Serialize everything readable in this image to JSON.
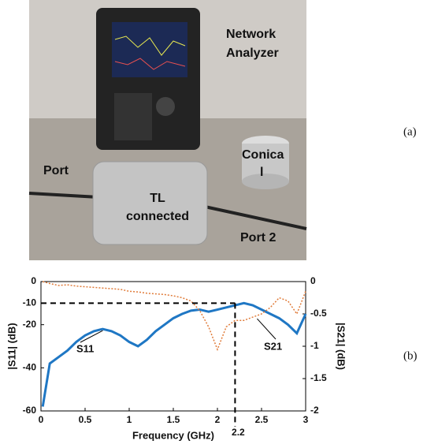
{
  "photo": {
    "labels": {
      "analyzer": [
        "Network",
        "Analyzer"
      ],
      "conical": [
        "Conica",
        "l"
      ],
      "port1": "Port",
      "tl": [
        "TL",
        "connected"
      ],
      "port2": "Port 2"
    },
    "panel_label": "(a)"
  },
  "chart_data": {
    "type": "line",
    "panel_label": "(b)",
    "x_label": "Frequency (GHz)",
    "y_label": "|S11| (dB)",
    "y2_label": "|S21| (dB)",
    "x": [
      0.02,
      0.1,
      0.2,
      0.3,
      0.4,
      0.5,
      0.6,
      0.7,
      0.8,
      0.9,
      1.0,
      1.1,
      1.2,
      1.3,
      1.4,
      1.5,
      1.6,
      1.7,
      1.8,
      1.9,
      2.0,
      2.1,
      2.2,
      2.3,
      2.4,
      2.5,
      2.6,
      2.7,
      2.8,
      2.9,
      3.0
    ],
    "series": [
      {
        "name": "S11",
        "color": "#1f77c4",
        "values": [
          -58,
          -38,
          -35,
          -32,
          -28,
          -25,
          -23,
          -22,
          -23,
          -25,
          -28,
          -30,
          -27,
          -23,
          -20,
          -17,
          -15,
          -13.5,
          -13,
          -14,
          -13,
          -12,
          -11,
          -10,
          -11,
          -13,
          -15,
          -17,
          -20,
          -24,
          -15
        ]
      },
      {
        "name": "S21",
        "color": "#e07b39",
        "axis": "y2",
        "values": [
          0,
          -0.03,
          -0.06,
          -0.05,
          -0.07,
          -0.08,
          -0.09,
          -0.1,
          -0.11,
          -0.12,
          -0.15,
          -0.16,
          -0.18,
          -0.19,
          -0.2,
          -0.22,
          -0.25,
          -0.3,
          -0.45,
          -0.7,
          -1.05,
          -0.7,
          -0.6,
          -0.6,
          -0.55,
          -0.5,
          -0.4,
          -0.25,
          -0.3,
          -0.5,
          -0.15
        ]
      }
    ],
    "xlim": [
      0,
      3
    ],
    "xticks": [
      0,
      0.5,
      1,
      1.5,
      2,
      2.5,
      3
    ],
    "ylim": [
      -60,
      0
    ],
    "yticks": [
      -60,
      -40,
      -20,
      -10,
      0
    ],
    "y2lim": [
      -2,
      0
    ],
    "y2ticks": [
      -2,
      -1.5,
      -1,
      -0.5,
      0
    ],
    "reference_lines": {
      "x": 2.2,
      "y": -10
    }
  }
}
